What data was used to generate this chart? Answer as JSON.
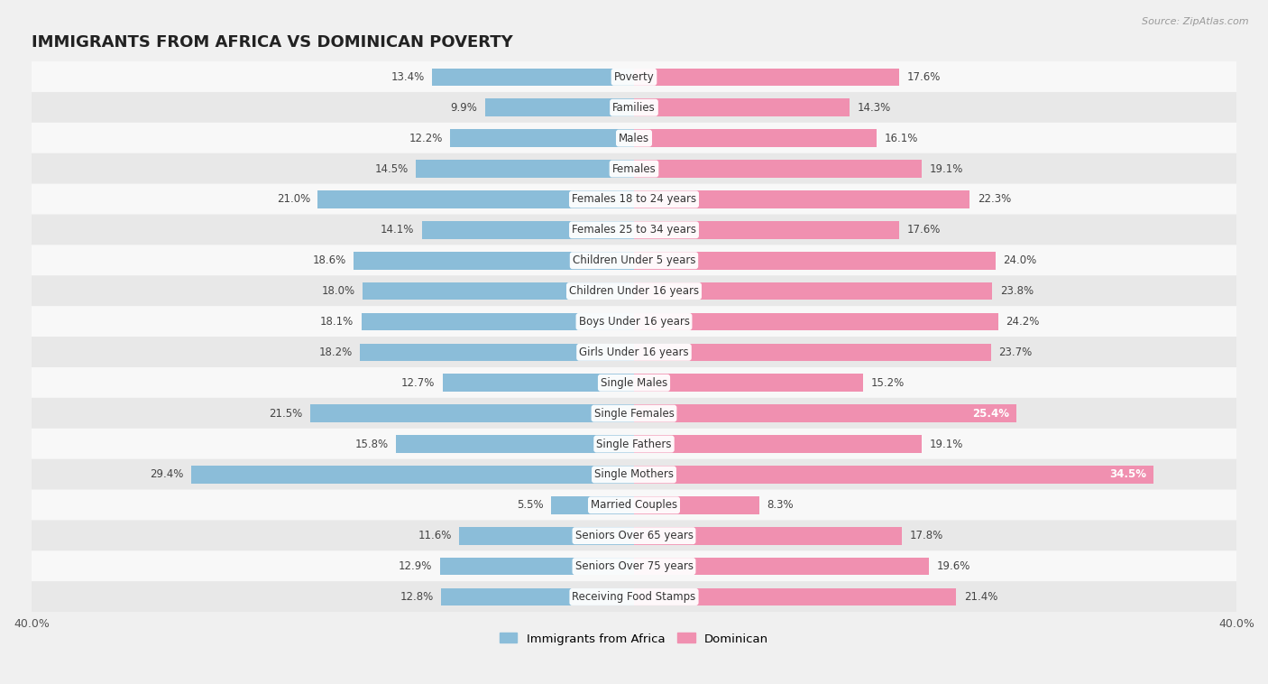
{
  "title": "IMMIGRANTS FROM AFRICA VS DOMINICAN POVERTY",
  "source": "Source: ZipAtlas.com",
  "categories": [
    "Poverty",
    "Families",
    "Males",
    "Females",
    "Females 18 to 24 years",
    "Females 25 to 34 years",
    "Children Under 5 years",
    "Children Under 16 years",
    "Boys Under 16 years",
    "Girls Under 16 years",
    "Single Males",
    "Single Females",
    "Single Fathers",
    "Single Mothers",
    "Married Couples",
    "Seniors Over 65 years",
    "Seniors Over 75 years",
    "Receiving Food Stamps"
  ],
  "africa_values": [
    13.4,
    9.9,
    12.2,
    14.5,
    21.0,
    14.1,
    18.6,
    18.0,
    18.1,
    18.2,
    12.7,
    21.5,
    15.8,
    29.4,
    5.5,
    11.6,
    12.9,
    12.8
  ],
  "dominican_values": [
    17.6,
    14.3,
    16.1,
    19.1,
    22.3,
    17.6,
    24.0,
    23.8,
    24.2,
    23.7,
    15.2,
    25.4,
    19.1,
    34.5,
    8.3,
    17.8,
    19.6,
    21.4
  ],
  "africa_color": "#8bbdd9",
  "dominican_color": "#f090b0",
  "africa_label": "Immigrants from Africa",
  "dominican_label": "Dominican",
  "axis_limit": 40.0,
  "background_color": "#f0f0f0",
  "row_color_light": "#f8f8f8",
  "row_color_dark": "#e8e8e8",
  "title_fontsize": 13,
  "label_fontsize": 8.5,
  "value_fontsize": 8.5,
  "white_threshold": 25.0
}
